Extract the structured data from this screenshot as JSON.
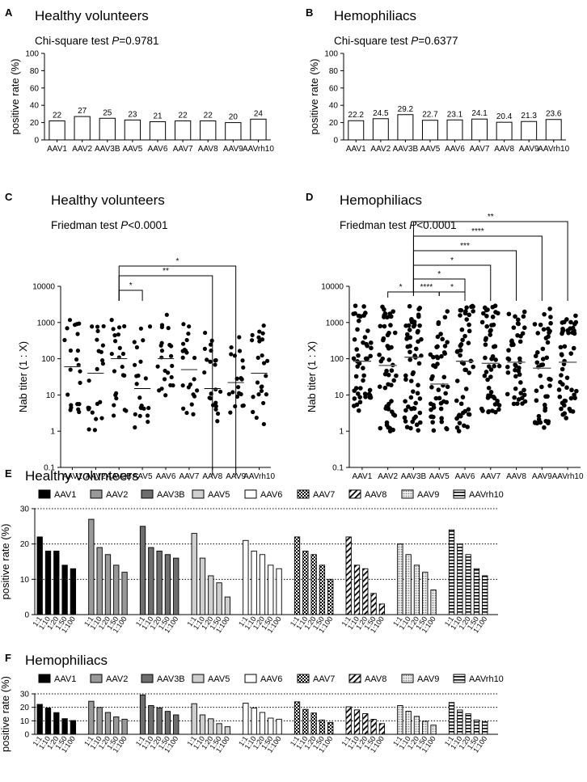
{
  "chart_data": [
    {
      "id": "A",
      "panel_letter": "A",
      "type": "bar",
      "title": "Healthy volunteers",
      "stat_prefix": "Chi-square test ",
      "stat_p": "P",
      "stat_value": "=0.9781",
      "categories": [
        "AAV1",
        "AAV2",
        "AAV3B",
        "AAV5",
        "AAV6",
        "AAV7",
        "AAV8",
        "AAV9",
        "AAVrh10"
      ],
      "values": [
        22,
        27,
        25,
        23,
        21,
        22,
        22,
        20,
        24
      ],
      "value_labels": [
        "22",
        "27",
        "25",
        "23",
        "21",
        "22",
        "22",
        "20",
        "24"
      ],
      "ylabel": "positive rate (%)",
      "ylim": [
        0,
        100
      ],
      "yticks": [
        "0",
        "20",
        "40",
        "60",
        "80",
        "100"
      ]
    },
    {
      "id": "B",
      "panel_letter": "B",
      "type": "bar",
      "title": "Hemophiliacs",
      "stat_prefix": "Chi-square test ",
      "stat_p": "P",
      "stat_value": "=0.6377",
      "categories": [
        "AAV1",
        "AAV2",
        "AAV3B",
        "AAV5",
        "AAV6",
        "AAV7",
        "AAV8",
        "AAV9",
        "AAVrh10"
      ],
      "values": [
        22.2,
        24.5,
        29.2,
        22.7,
        23.1,
        24.1,
        20.4,
        21.3,
        23.6
      ],
      "value_labels": [
        "22.2",
        "24.5",
        "29.2",
        "22.7",
        "23.1",
        "24.1",
        "20.4",
        "21.3",
        "23.6"
      ],
      "ylabel": "positive rate (%)",
      "ylim": [
        0,
        100
      ],
      "yticks": [
        "0",
        "20",
        "40",
        "60",
        "80",
        "100"
      ]
    },
    {
      "id": "C",
      "panel_letter": "C",
      "type": "scatter",
      "title": "Healthy volunteers",
      "stat_prefix": "Friedman test ",
      "stat_p": "P",
      "stat_value": "<0.0001",
      "categories": [
        "AAV1",
        "AAV2",
        "AAV3B",
        "AAV5",
        "AAV6",
        "AAV7",
        "AAV8",
        "AAV9",
        "AAVrh10"
      ],
      "ylabel": "Nab titer (1 : X)",
      "yscale": "log",
      "ylim": [
        0.1,
        10000
      ],
      "yticks": [
        "0.1",
        "1",
        "10",
        "100",
        "1000",
        "10000"
      ],
      "medians": [
        60,
        40,
        100,
        15,
        100,
        50,
        15,
        22,
        40
      ],
      "counts": [
        22,
        22,
        22,
        22,
        22,
        22,
        22,
        20,
        24
      ],
      "ranges": [
        [
          2,
          1200
        ],
        [
          1,
          800
        ],
        [
          1,
          2000
        ],
        [
          1,
          800
        ],
        [
          5,
          1800
        ],
        [
          2,
          1200
        ],
        [
          1,
          600
        ],
        [
          3,
          500
        ],
        [
          1.5,
          1000
        ]
      ],
      "comparisons": [
        {
          "from": 2,
          "to": 3,
          "label": "*"
        },
        {
          "from": 2,
          "to": 6,
          "label": "**"
        },
        {
          "from": 2,
          "to": 7,
          "label": "*"
        }
      ]
    },
    {
      "id": "D",
      "panel_letter": "D",
      "type": "scatter",
      "title": "Hemophiliacs",
      "stat_prefix": "Friedman test ",
      "stat_p": "P",
      "stat_value": "<0.0001",
      "categories": [
        "AAV1",
        "AAV2",
        "AAV3B",
        "AAV5",
        "AAV6",
        "AAV7",
        "AAV8",
        "AAV9",
        "AAVrh10"
      ],
      "ylabel": "Nab titer (1 : X)",
      "yscale": "log",
      "ylim": [
        0.1,
        10000
      ],
      "yticks": [
        "0.1",
        "1",
        "10",
        "100",
        "1000",
        "10000"
      ],
      "medians": [
        85,
        65,
        110,
        20,
        85,
        75,
        80,
        55,
        80
      ],
      "counts": [
        48,
        52,
        62,
        48,
        50,
        52,
        45,
        46,
        50
      ],
      "ranges": [
        [
          3,
          3000
        ],
        [
          1,
          3000
        ],
        [
          1,
          3000
        ],
        [
          1,
          2500
        ],
        [
          1,
          3000
        ],
        [
          3,
          3000
        ],
        [
          4,
          2500
        ],
        [
          1,
          3000
        ],
        [
          2,
          2500
        ]
      ],
      "comparisons": [
        {
          "from": 1,
          "to": 2,
          "label": "*"
        },
        {
          "from": 2,
          "to": 3,
          "label": "****"
        },
        {
          "from": 3,
          "to": 4,
          "label": "*"
        },
        {
          "from": 2,
          "to": 4,
          "label": "*"
        },
        {
          "from": 2,
          "to": 5,
          "label": "*"
        },
        {
          "from": 2,
          "to": 6,
          "label": "***"
        },
        {
          "from": 2,
          "to": 7,
          "label": "****"
        },
        {
          "from": 2,
          "to": 8,
          "label": "**"
        }
      ]
    },
    {
      "id": "E",
      "panel_letter": "E",
      "type": "bar",
      "title": "Healthy volunteers",
      "groups": [
        "AAV1",
        "AAV2",
        "AAV3B",
        "AAV5",
        "AAV6",
        "AAV7",
        "AAV8",
        "AAV9",
        "AAVrh10"
      ],
      "dilutions": [
        "1:1",
        "1:10",
        "1:20",
        "1:50",
        "1:100"
      ],
      "values": [
        [
          22,
          18,
          18,
          14,
          13
        ],
        [
          27,
          19,
          17,
          14,
          12
        ],
        [
          25,
          19,
          18,
          17,
          16
        ],
        [
          23,
          16,
          11,
          9,
          5
        ],
        [
          21,
          18,
          17,
          14,
          13
        ],
        [
          22,
          18,
          17,
          14,
          10
        ],
        [
          22,
          14,
          13,
          6,
          3
        ],
        [
          20,
          17,
          14,
          12,
          7
        ],
        [
          24,
          20,
          17,
          13,
          11
        ]
      ],
      "ylabel": "positive rate (%)",
      "ylim": [
        0,
        30
      ],
      "yticks": [
        "0",
        "10",
        "20",
        "30"
      ]
    },
    {
      "id": "F",
      "panel_letter": "F",
      "type": "bar",
      "title": "Hemophiliacs",
      "groups": [
        "AAV1",
        "AAV2",
        "AAV3B",
        "AAV5",
        "AAV6",
        "AAV7",
        "AAV8",
        "AAV9",
        "AAVrh10"
      ],
      "dilutions": [
        "1:1",
        "1:10",
        "1:20",
        "1:50",
        "1:100"
      ],
      "values": [
        [
          22.2,
          19.5,
          16.1,
          11.6,
          10.2
        ],
        [
          24.5,
          19.9,
          16.2,
          12.9,
          11.2
        ],
        [
          29.2,
          21.3,
          19.6,
          17,
          14.4
        ],
        [
          22.7,
          14.4,
          11.5,
          7.9,
          5.6
        ],
        [
          23.1,
          19.5,
          16.2,
          12,
          11.2
        ],
        [
          24.1,
          18.5,
          15.8,
          10.6,
          8.8
        ],
        [
          20.4,
          18.1,
          15.3,
          11.1,
          7.9
        ],
        [
          21.3,
          17.1,
          13.3,
          9.7,
          6.8
        ],
        [
          23.6,
          18,
          15.2,
          10.6,
          9.3
        ]
      ],
      "ylabel": "positive rate (%)",
      "ylim": [
        0,
        30
      ],
      "yticks": [
        "0",
        "10",
        "20",
        "30"
      ]
    }
  ],
  "legend_colors": [
    "#000000",
    "#999999",
    "#6e6e6e",
    "#cfcfcf",
    "#ffffff",
    "pattern-check",
    "pattern-diagonal",
    "pattern-dots",
    "pattern-stripes"
  ]
}
